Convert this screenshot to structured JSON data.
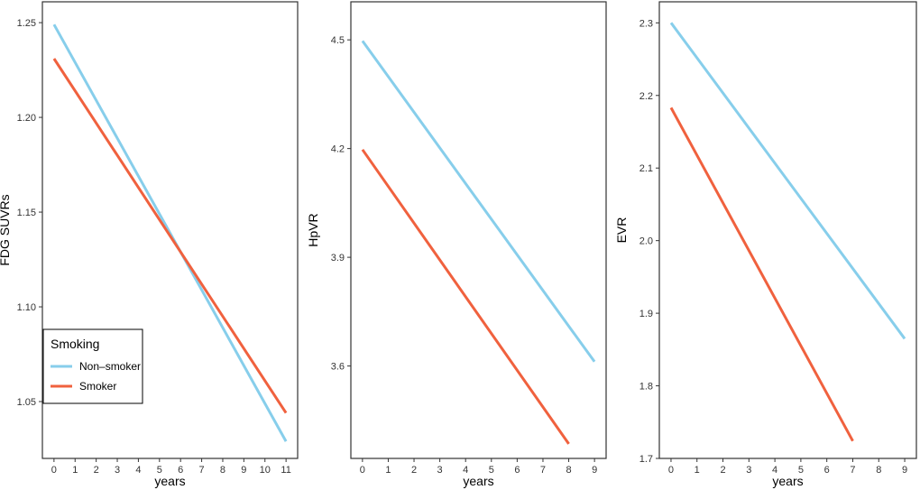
{
  "chart_data": [
    {
      "type": "line",
      "xlabel": "years",
      "ylabel": "FDG SUVRs",
      "xlim": [
        -0.55,
        11.55
      ],
      "ylim": [
        1.02,
        1.261
      ],
      "xticks": [
        0,
        1,
        2,
        3,
        4,
        5,
        6,
        7,
        8,
        9,
        10,
        11
      ],
      "yticks": [
        "1.05",
        "1.10",
        "1.15",
        "1.20",
        "1.25"
      ],
      "grid": false,
      "legend_position": "bottom-left",
      "series": [
        {
          "name": "Non–smoker",
          "x": [
            0,
            11
          ],
          "y": [
            1.249,
            1.029
          ]
        },
        {
          "name": "Smoker",
          "x": [
            0,
            11
          ],
          "y": [
            1.231,
            1.044
          ]
        }
      ]
    },
    {
      "type": "line",
      "xlabel": "years",
      "ylabel": "HpVR",
      "xlim": [
        -0.45,
        9.45
      ],
      "ylim": [
        3.345,
        4.605
      ],
      "xticks": [
        0,
        1,
        2,
        3,
        4,
        5,
        6,
        7,
        8,
        9
      ],
      "yticks": [
        "3.6",
        "3.9",
        "4.2",
        "4.5"
      ],
      "grid": false,
      "series": [
        {
          "name": "Non–smoker",
          "x": [
            0,
            9
          ],
          "y": [
            4.497,
            3.612
          ]
        },
        {
          "name": "Smoker",
          "x": [
            0,
            8
          ],
          "y": [
            4.197,
            3.385
          ]
        }
      ]
    },
    {
      "type": "line",
      "xlabel": "years",
      "ylabel": "EVR",
      "xlim": [
        -0.45,
        9.45
      ],
      "ylim": [
        1.7,
        2.329
      ],
      "xticks": [
        0,
        1,
        2,
        3,
        4,
        5,
        6,
        7,
        8,
        9
      ],
      "yticks": [
        "1.7",
        "1.8",
        "1.9",
        "2.0",
        "2.1",
        "2.2",
        "2.3"
      ],
      "grid": false,
      "series": [
        {
          "name": "Non–smoker",
          "x": [
            0,
            9
          ],
          "y": [
            2.3,
            1.865
          ]
        },
        {
          "name": "Smoker",
          "x": [
            0,
            7
          ],
          "y": [
            2.183,
            1.724
          ]
        }
      ]
    }
  ],
  "legend": {
    "title": "Smoking",
    "items": [
      {
        "label": "Non–smoker",
        "color": "#87ceeb"
      },
      {
        "label": "Smoker",
        "color": "#f0613e"
      }
    ]
  },
  "colors": {
    "non_smoker": "#87ceeb",
    "smoker": "#f0613e"
  }
}
